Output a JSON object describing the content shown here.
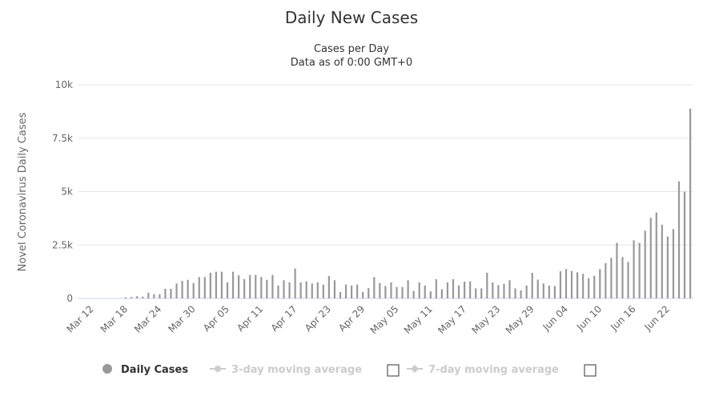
{
  "chart_data": {
    "type": "bar",
    "title": "Daily New Cases",
    "subtitle": [
      "Cases per Day",
      "Data as of 0:00 GMT+0"
    ],
    "xlabel": "",
    "ylabel": "Novel Coronavirus Daily Cases",
    "ylim": [
      0,
      10000
    ],
    "y_ticks": [
      "0",
      "2.5k",
      "5k",
      "7.5k",
      "10k"
    ],
    "y_tick_values": [
      0,
      2500,
      5000,
      7500,
      10000
    ],
    "grid": true,
    "bar_color": "#999999",
    "x_tick_labels": [
      "Mar 12",
      "Mar 18",
      "Mar 24",
      "Mar 30",
      "Apr 05",
      "Apr 11",
      "Apr 17",
      "Apr 23",
      "Apr 29",
      "May 05",
      "May 11",
      "May 17",
      "May 23",
      "May 29",
      "Jun 04",
      "Jun 10",
      "Jun 16",
      "Jun 22"
    ],
    "x_range": [
      "Mar 12",
      "Jun 26"
    ],
    "values": [
      0,
      0,
      0,
      0,
      0,
      0,
      50,
      60,
      100,
      80,
      270,
      200,
      200,
      450,
      450,
      700,
      820,
      870,
      720,
      1000,
      1000,
      1200,
      1250,
      1250,
      750,
      1250,
      1080,
      900,
      1100,
      1100,
      1000,
      870,
      1100,
      600,
      850,
      750,
      1400,
      750,
      800,
      700,
      750,
      650,
      1050,
      850,
      300,
      650,
      600,
      650,
      300,
      480,
      1000,
      720,
      580,
      750,
      530,
      530,
      850,
      350,
      750,
      600,
      330,
      900,
      430,
      750,
      900,
      610,
      780,
      800,
      470,
      470,
      1200,
      750,
      620,
      680,
      850,
      470,
      380,
      600,
      1200,
      880,
      700,
      600,
      580,
      1270,
      1380,
      1280,
      1220,
      1150,
      950,
      1060,
      1370,
      1650,
      1900,
      2600,
      1940,
      1700,
      2720,
      2600,
      3170,
      3770,
      4020,
      3450,
      2900,
      3250,
      5480,
      5000,
      8880
    ],
    "series": [
      {
        "name": "Daily Cases",
        "color": "#999999"
      }
    ]
  },
  "legend": {
    "items": [
      {
        "label": "Daily Cases",
        "color": "#999999",
        "active": true
      },
      {
        "label": "3-day moving average",
        "color": "#cccccc",
        "active": false
      },
      {
        "label": "7-day moving average",
        "color": "#cccccc",
        "active": false
      }
    ]
  }
}
